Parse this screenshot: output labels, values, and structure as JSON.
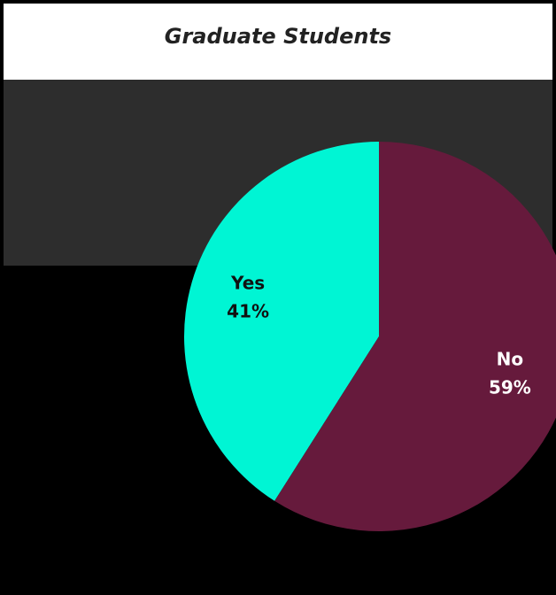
{
  "chart_data": {
    "type": "pie",
    "title": "Graduate Students",
    "categories": [
      "Yes",
      "No"
    ],
    "values": [
      41,
      59
    ],
    "value_labels": [
      "41%",
      "59%"
    ],
    "colors": [
      "#00f5d4",
      "#661a3c"
    ]
  }
}
